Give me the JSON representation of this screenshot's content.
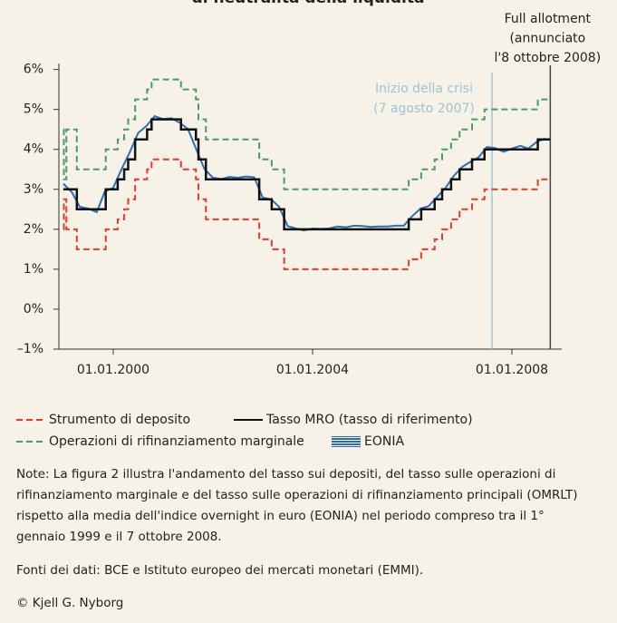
{
  "title": "di neutralità della liquidità",
  "chart_data": {
    "type": "line",
    "xlim": [
      1998.91,
      2009.0
    ],
    "xticks": [
      {
        "value": 2000,
        "label": "01.01.2000"
      },
      {
        "value": 2004,
        "label": "01.01.2004"
      },
      {
        "value": 2008,
        "label": "01.01.2008"
      }
    ],
    "ylim": [
      -1,
      6.15
    ],
    "yticks": [
      {
        "value": -1,
        "label": "–1%"
      },
      {
        "value": 0,
        "label": "0%"
      },
      {
        "value": 1,
        "label": "1%"
      },
      {
        "value": 2,
        "label": "2%"
      },
      {
        "value": 3,
        "label": "3%"
      },
      {
        "value": 4,
        "label": "4%"
      },
      {
        "value": 5,
        "label": "5%"
      },
      {
        "value": 6,
        "label": "6%"
      }
    ],
    "series": [
      {
        "name": "Strumento di deposito",
        "color": "#e8392b",
        "dash": true,
        "step": true,
        "x": [
          1999.0,
          1999.01,
          1999.06,
          1999.27,
          1999.85,
          2000.09,
          2000.22,
          2000.3,
          2000.44,
          2000.68,
          2000.77,
          2001.36,
          2001.66,
          2001.71,
          2001.86,
          2002.93,
          2003.18,
          2003.43,
          2005.93,
          2006.18,
          2006.45,
          2006.6,
          2006.78,
          2006.95,
          2007.2,
          2007.45,
          2008.52,
          2008.77
        ],
        "values": [
          2.0,
          2.75,
          2.0,
          1.5,
          2.0,
          2.25,
          2.5,
          2.75,
          3.25,
          3.5,
          3.75,
          3.5,
          3.25,
          2.75,
          2.25,
          1.75,
          1.5,
          1.0,
          1.25,
          1.5,
          1.75,
          2.0,
          2.25,
          2.5,
          2.75,
          3.0,
          3.25,
          3.25
        ]
      },
      {
        "name": "Tasso MRO (tasso di riferimento)",
        "color": "#111111",
        "dash": false,
        "step": true,
        "x": [
          1999.0,
          1999.27,
          1999.85,
          2000.09,
          2000.22,
          2000.3,
          2000.44,
          2000.68,
          2000.77,
          2001.36,
          2001.66,
          2001.71,
          2001.86,
          2002.93,
          2003.18,
          2003.43,
          2005.93,
          2006.18,
          2006.45,
          2006.6,
          2006.78,
          2006.95,
          2007.2,
          2007.45,
          2008.52,
          2008.77
        ],
        "values": [
          3.0,
          2.5,
          3.0,
          3.25,
          3.5,
          3.75,
          4.25,
          4.5,
          4.75,
          4.5,
          4.25,
          3.75,
          3.25,
          2.75,
          2.5,
          2.0,
          2.25,
          2.5,
          2.75,
          3.0,
          3.25,
          3.5,
          3.75,
          4.0,
          4.25,
          4.25
        ]
      },
      {
        "name": "Operazioni di rifinanziamento marginale",
        "color": "#4a9a6a",
        "dash": true,
        "step": true,
        "x": [
          1999.0,
          1999.01,
          1999.06,
          1999.27,
          1999.85,
          2000.09,
          2000.22,
          2000.3,
          2000.44,
          2000.68,
          2000.77,
          2001.36,
          2001.66,
          2001.71,
          2001.86,
          2002.93,
          2003.18,
          2003.43,
          2005.93,
          2006.18,
          2006.45,
          2006.6,
          2006.78,
          2006.95,
          2007.2,
          2007.45,
          2008.52,
          2008.77
        ],
        "values": [
          4.5,
          3.25,
          4.5,
          3.5,
          4.0,
          4.25,
          4.5,
          4.75,
          5.25,
          5.5,
          5.75,
          5.5,
          5.25,
          4.75,
          4.25,
          3.75,
          3.5,
          3.0,
          3.25,
          3.5,
          3.75,
          4.0,
          4.25,
          4.5,
          4.75,
          5.0,
          5.25,
          5.25
        ]
      },
      {
        "name": "EONIA",
        "color": "#2f6db3",
        "dash": false,
        "step": false,
        "x": [
          1999.0,
          1999.17,
          1999.33,
          1999.5,
          1999.67,
          1999.83,
          2000.0,
          2000.17,
          2000.33,
          2000.5,
          2000.67,
          2000.83,
          2001.0,
          2001.17,
          2001.33,
          2001.5,
          2001.67,
          2001.83,
          2002.0,
          2002.17,
          2002.33,
          2002.5,
          2002.67,
          2002.83,
          2003.0,
          2003.17,
          2003.33,
          2003.5,
          2003.67,
          2003.83,
          2004.0,
          2004.17,
          2004.33,
          2004.5,
          2004.67,
          2004.83,
          2005.0,
          2005.17,
          2005.33,
          2005.5,
          2005.67,
          2005.83,
          2006.0,
          2006.17,
          2006.33,
          2006.5,
          2006.67,
          2006.83,
          2007.0,
          2007.17,
          2007.33,
          2007.5,
          2007.67,
          2007.83,
          2008.0,
          2008.17,
          2008.33,
          2008.5,
          2008.67
        ],
        "values": [
          3.14,
          2.93,
          2.56,
          2.52,
          2.43,
          2.94,
          3.04,
          3.51,
          3.92,
          4.41,
          4.59,
          4.83,
          4.76,
          4.78,
          4.67,
          4.51,
          3.99,
          3.51,
          3.29,
          3.26,
          3.31,
          3.29,
          3.32,
          3.3,
          2.79,
          2.75,
          2.56,
          2.08,
          2.02,
          1.97,
          2.02,
          2.01,
          2.02,
          2.07,
          2.05,
          2.09,
          2.08,
          2.06,
          2.07,
          2.07,
          2.09,
          2.09,
          2.33,
          2.52,
          2.58,
          2.81,
          3.04,
          3.33,
          3.56,
          3.69,
          3.8,
          4.06,
          4.03,
          3.94,
          4.02,
          4.09,
          4.02,
          4.19,
          4.27
        ]
      }
    ],
    "annotations": [
      {
        "x": 2007.6,
        "color": "#9cc3d5",
        "text": [
          "Inizio della crisi",
          "(7 agosto 2007)"
        ]
      },
      {
        "x": 2008.77,
        "color": "#444444",
        "text": [
          "Full allotment",
          "(annunciato",
          "l'8 ottobre 2008)"
        ]
      }
    ]
  },
  "notes": "Note: La figura 2 illustra l'andamento del tasso sui depositi, del tasso sulle operazioni di rifinanziamento marginale e del tasso sulle operazioni di rifinanziamento principali (OMRLT) rispetto alla media dell'indice overnight in euro (EONIA) nel periodo compreso tra il 1° gennaio 1999 e il 7 ottobre 2008.",
  "sources": "Fonti dei dati: BCE e Istituto europeo dei mercati monetari (EMMI).",
  "copyright": "© Kjell G. Nyborg"
}
